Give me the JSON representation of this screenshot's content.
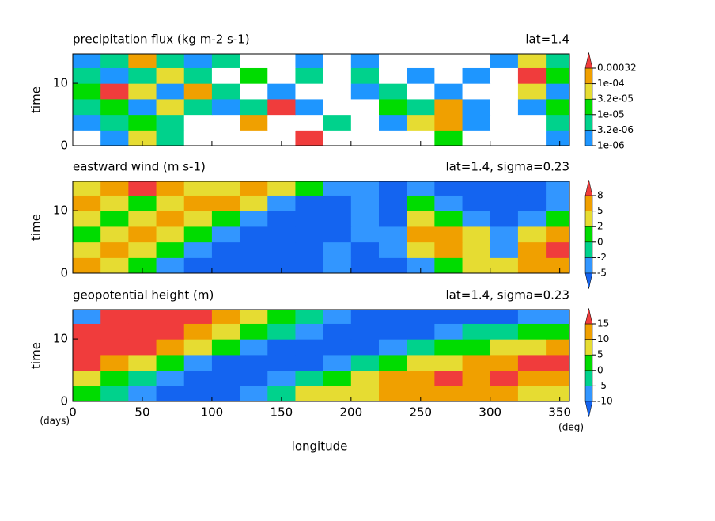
{
  "chart_data": [
    {
      "type": "heatmap",
      "title": "precipitation flux (kg m-2 s-1)",
      "annotation": "lat=1.4",
      "ylabel": "time",
      "x": [
        10,
        30,
        50,
        70,
        90,
        110,
        130,
        150,
        170,
        190,
        210,
        230,
        250,
        270,
        290,
        310,
        330,
        350
      ],
      "y": [
        1.25,
        3.75,
        6.25,
        8.75,
        11.25,
        13.75
      ],
      "z": [
        [
          0,
          2e-06,
          5e-05,
          5e-06,
          0,
          0,
          0,
          0,
          0.0005,
          0,
          0,
          0,
          0,
          2e-05,
          0,
          0,
          0,
          2e-06
        ],
        [
          2e-06,
          5e-06,
          2e-05,
          5e-06,
          0,
          0,
          0.0002,
          0,
          0,
          5e-06,
          0,
          2e-06,
          5e-05,
          0.0002,
          2e-06,
          0,
          0,
          5e-06
        ],
        [
          5e-06,
          2e-05,
          2e-06,
          5e-05,
          5e-06,
          2e-06,
          5e-06,
          0.0005,
          2e-06,
          0,
          0,
          2e-05,
          5e-06,
          0.0002,
          2e-06,
          0,
          2e-06,
          2e-05
        ],
        [
          2e-05,
          0.0005,
          5e-05,
          2e-06,
          0.0002,
          5e-06,
          0,
          2e-06,
          0,
          0,
          2e-06,
          5e-06,
          0,
          2e-06,
          0,
          0,
          5e-05,
          2e-06
        ],
        [
          5e-06,
          2e-06,
          5e-06,
          5e-05,
          5e-06,
          0,
          2e-05,
          0,
          5e-06,
          0,
          5e-06,
          0,
          2e-06,
          0,
          2e-06,
          0,
          0.0005,
          2e-05
        ],
        [
          2e-06,
          5e-06,
          0.0002,
          5e-06,
          2e-06,
          5e-06,
          0,
          0,
          2e-06,
          0,
          2e-06,
          0,
          0,
          0,
          0,
          2e-06,
          5e-05,
          5e-06
        ]
      ],
      "xlim": [
        0,
        357
      ],
      "ylim": [
        0,
        14.7
      ],
      "yticks": [
        0,
        10
      ],
      "levels": [
        {
          "value": 1e-06,
          "label": "1e-06"
        },
        {
          "value": 3.2e-06,
          "label": "3.2e-06"
        },
        {
          "value": 1e-05,
          "label": "1e-05"
        },
        {
          "value": 3.2e-05,
          "label": "3.2e-05"
        },
        {
          "value": 0.0001,
          "label": "1e-04"
        },
        0.00032
      ],
      "colors": [
        "#ffffff",
        "#1e96ff",
        "#00d28c",
        "#00dc00",
        "#e6dc32",
        "#f0a000",
        "#f03c3c"
      ]
    },
    {
      "type": "heatmap",
      "title": "eastward wind (m s-1)",
      "annotation": "lat=1.4, sigma=0.23",
      "ylabel": "time",
      "x": [
        10,
        30,
        50,
        70,
        90,
        110,
        130,
        150,
        170,
        190,
        210,
        230,
        250,
        270,
        290,
        310,
        330,
        350
      ],
      "y": [
        1.25,
        3.75,
        6.25,
        8.75,
        11.25,
        13.75
      ],
      "z": [
        [
          6,
          3,
          1,
          -3,
          -6,
          -6,
          -6,
          -6,
          -6,
          -3,
          -6,
          -6,
          -3,
          0,
          3,
          3,
          6,
          7
        ],
        [
          3,
          6,
          3,
          0,
          -3,
          -6,
          -6,
          -6,
          -6,
          -3,
          -6,
          -3,
          3,
          6,
          3,
          -3,
          6,
          9
        ],
        [
          1,
          3,
          6,
          3,
          0,
          -3,
          -6,
          -6,
          -6,
          -6,
          -3,
          -3,
          6,
          6,
          3,
          -3,
          3,
          6
        ],
        [
          3,
          1,
          3,
          6,
          3,
          1,
          -3,
          -6,
          -6,
          -6,
          -3,
          -6,
          3,
          0,
          -3,
          -6,
          -3,
          0
        ],
        [
          6,
          3,
          1,
          3,
          6,
          6,
          3,
          -3,
          -6,
          -6,
          -3,
          -6,
          0,
          -3,
          -6,
          -6,
          -6,
          -3
        ],
        [
          3,
          6,
          9,
          6,
          3,
          3,
          6,
          3,
          1,
          -3,
          -3,
          -6,
          -3,
          -6,
          -6,
          -6,
          -6,
          -3
        ]
      ],
      "xlim": [
        0,
        357
      ],
      "ylim": [
        0,
        14.7
      ],
      "yticks": [
        0,
        10
      ],
      "levels": [
        -5,
        -2,
        0,
        2,
        5,
        8
      ],
      "colors": [
        "#1464f0",
        "#3296ff",
        "#00d28c",
        "#00dc00",
        "#e6dc32",
        "#f0a000",
        "#f03c3c"
      ]
    },
    {
      "type": "heatmap",
      "title": "geopotential height (m)",
      "annotation": "lat=1.4, sigma=0.23",
      "ylabel": "time",
      "xlabel": "longitude",
      "xunit": "(deg)",
      "yunit": "(days)",
      "x": [
        10,
        30,
        50,
        70,
        90,
        110,
        130,
        150,
        170,
        190,
        210,
        230,
        250,
        270,
        290,
        310,
        330,
        350
      ],
      "y": [
        1.25,
        3.75,
        6.25,
        8.75,
        11.25,
        13.75
      ],
      "z": [
        [
          1,
          -3,
          -8,
          -12,
          -12,
          -12,
          -8,
          -3,
          6,
          6,
          8,
          12,
          12,
          12,
          12,
          12,
          8,
          8
        ],
        [
          6,
          1,
          -3,
          -8,
          -12,
          -12,
          -12,
          -8,
          -3,
          1,
          6,
          12,
          12,
          16,
          12,
          16,
          12,
          12
        ],
        [
          16,
          12,
          6,
          1,
          -8,
          -12,
          -12,
          -12,
          -12,
          -8,
          -3,
          1,
          6,
          8,
          12,
          12,
          16,
          16
        ],
        [
          16,
          16,
          16,
          12,
          6,
          1,
          -8,
          -12,
          -12,
          -12,
          -12,
          -8,
          -3,
          1,
          3,
          6,
          8,
          12
        ],
        [
          16,
          16,
          16,
          16,
          12,
          8,
          3,
          -3,
          -8,
          -12,
          -12,
          -12,
          -12,
          -8,
          -3,
          -3,
          1,
          3
        ],
        [
          -8,
          16,
          16,
          16,
          16,
          12,
          8,
          3,
          -3,
          -8,
          -12,
          -12,
          -12,
          -12,
          -12,
          -12,
          -8,
          -8
        ]
      ],
      "xlim": [
        0,
        357
      ],
      "ylim": [
        0,
        14.7
      ],
      "yticks": [
        0,
        10
      ],
      "xticks": [
        0,
        50,
        100,
        150,
        200,
        250,
        300,
        350
      ],
      "levels": [
        -10,
        -5,
        0,
        5,
        10,
        15
      ],
      "colors": [
        "#1464f0",
        "#3296ff",
        "#00d28c",
        "#00dc00",
        "#e6dc32",
        "#f0a000",
        "#f03c3c"
      ]
    }
  ]
}
